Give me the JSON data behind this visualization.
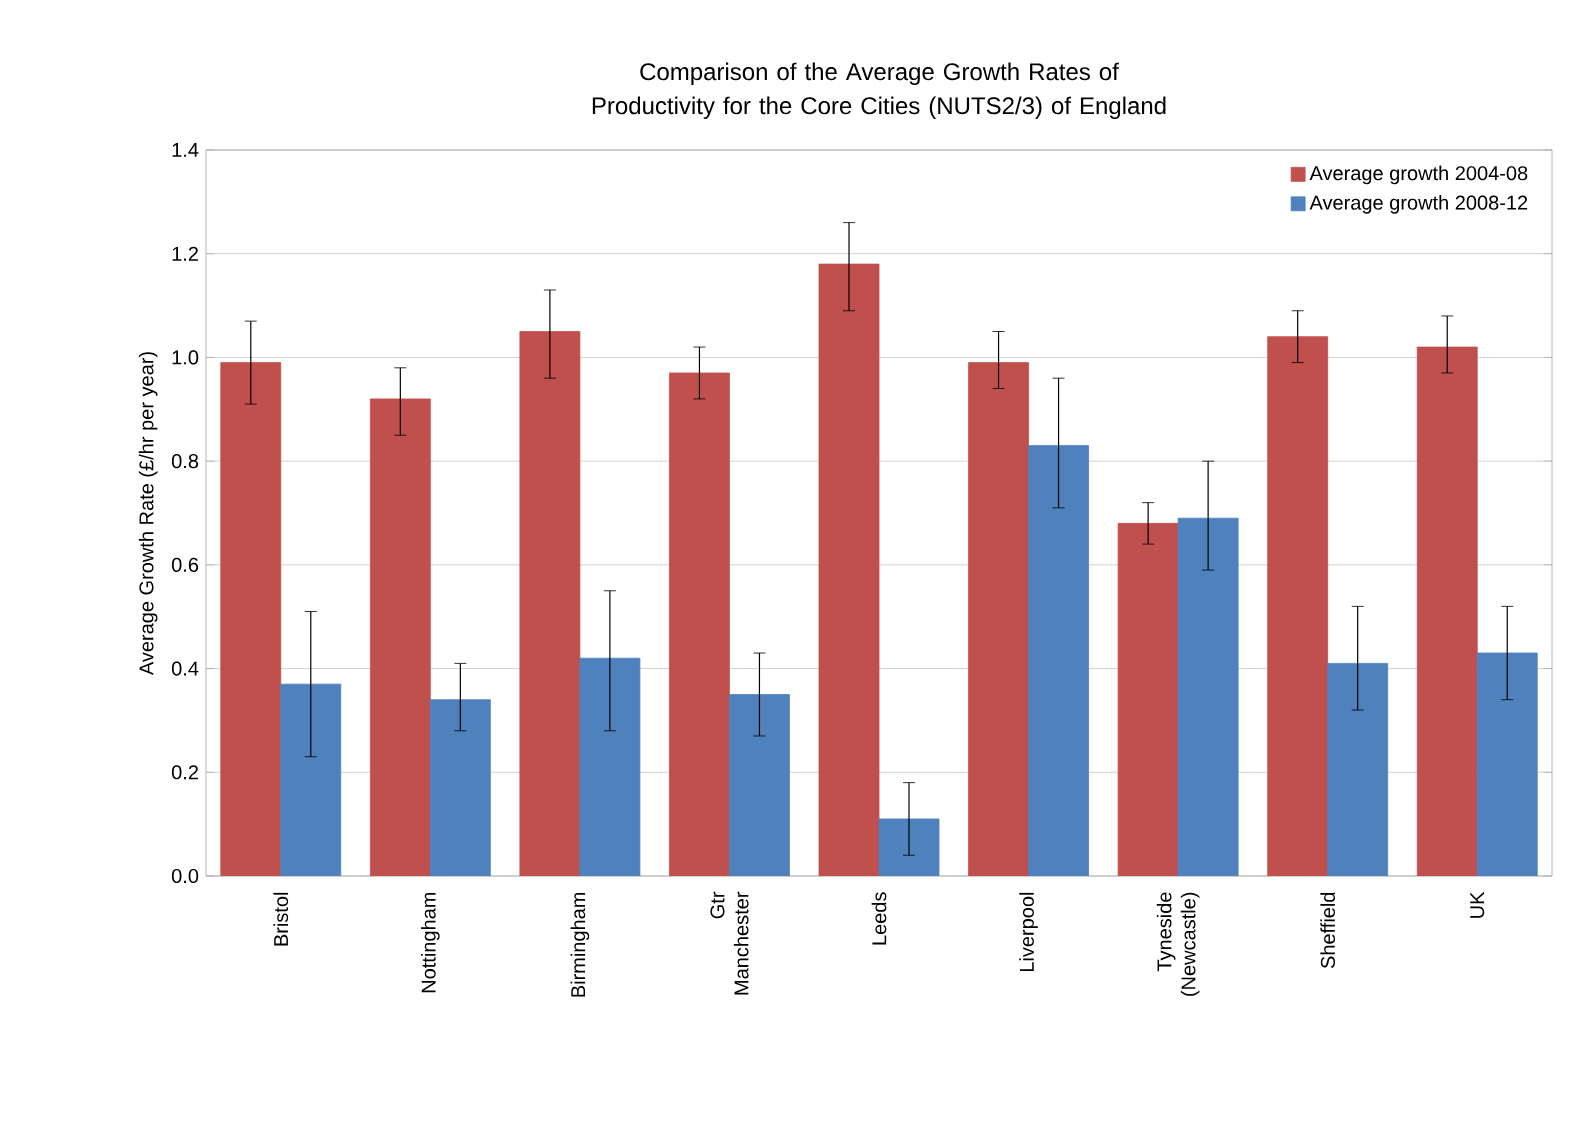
{
  "chart_data": {
    "type": "bar",
    "title": "Comparison of the Average Growth Rates of Productivity for the Core Cities (NUTS2/3) of England",
    "ylabel": "Average Growth Rate (£/hr per year)",
    "categories": [
      "Bristol",
      "Nottingham",
      "Birmingham",
      "Gtr Manchester",
      "Leeds",
      "Liverpool",
      "Tyneside (Newcastle)",
      "Sheffield",
      "UK"
    ],
    "series": [
      {
        "name": "Average growth 2004-08",
        "color": "#c0504d",
        "values": [
          0.99,
          0.92,
          1.05,
          0.97,
          1.18,
          0.99,
          0.68,
          1.04,
          1.02
        ],
        "errors": [
          [
            0.91,
            1.07
          ],
          [
            0.85,
            0.98
          ],
          [
            0.96,
            1.13
          ],
          [
            0.92,
            1.02
          ],
          [
            1.09,
            1.26
          ],
          [
            0.94,
            1.05
          ],
          [
            0.64,
            0.72
          ],
          [
            0.99,
            1.09
          ],
          [
            0.97,
            1.08
          ]
        ]
      },
      {
        "name": "Average growth 2008-12",
        "color": "#4f81bd",
        "values": [
          0.37,
          0.34,
          0.42,
          0.35,
          0.11,
          0.83,
          0.69,
          0.41,
          0.43
        ],
        "errors": [
          [
            0.23,
            0.51
          ],
          [
            0.28,
            0.41
          ],
          [
            0.28,
            0.55
          ],
          [
            0.27,
            0.43
          ],
          [
            0.04,
            0.18
          ],
          [
            0.71,
            0.96
          ],
          [
            0.59,
            0.8
          ],
          [
            0.32,
            0.52
          ],
          [
            0.34,
            0.52
          ]
        ]
      }
    ],
    "ylim": [
      0,
      1.4
    ],
    "yticks": [
      {
        "value": 0,
        "label": "0.0"
      },
      {
        "value": 0.2,
        "label": "0.2"
      },
      {
        "value": 0.4,
        "label": "0.4"
      },
      {
        "value": 0.6,
        "label": "0.6"
      },
      {
        "value": 0.8,
        "label": "0.8"
      },
      {
        "value": 1.0,
        "label": "1.0"
      },
      {
        "value": 1.2,
        "label": "1.2"
      },
      {
        "value": 1.4,
        "label": "1.4"
      }
    ],
    "grid": "y",
    "legend": "top right"
  }
}
